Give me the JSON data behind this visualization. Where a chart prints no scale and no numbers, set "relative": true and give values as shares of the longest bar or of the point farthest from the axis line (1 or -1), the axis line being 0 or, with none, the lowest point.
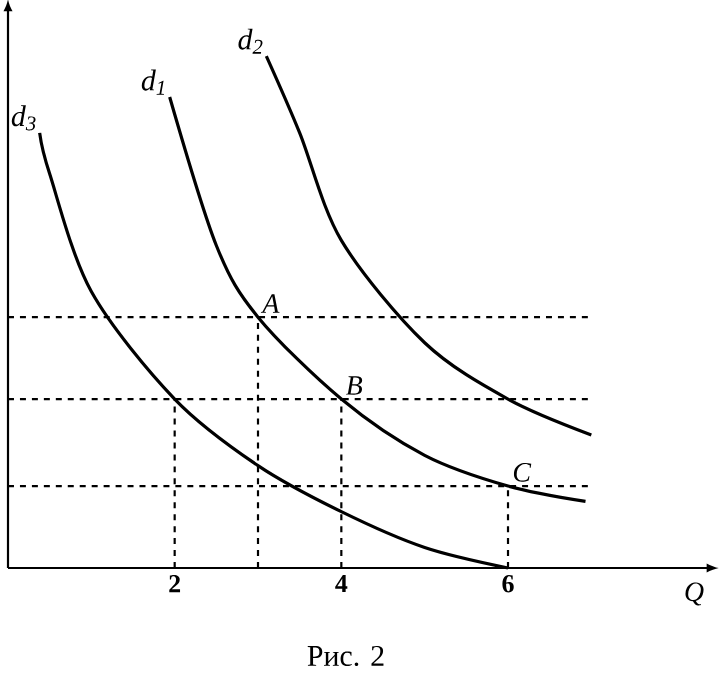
{
  "chart_data": {
    "type": "line",
    "title": "Рис. 2",
    "xlabel": "Q",
    "relative": true,
    "xlim": [
      0,
      8.4
    ],
    "xticks": [
      2,
      4,
      6
    ],
    "tick_labels": "x",
    "grid": false,
    "legend": false,
    "marker": "none",
    "line_style": "solid",
    "series": [
      {
        "name": "d$_{1}$",
        "color": "#000000",
        "x": [
          1.94,
          2.5,
          3,
          4,
          5,
          6,
          6.93
        ],
        "values": [
          0.92,
          0.63,
          0.49,
          0.33,
          0.22,
          0.16,
          0.13
        ]
      },
      {
        "name": "d$_{2}$",
        "color": "#000000",
        "x": [
          3.1,
          3.5,
          4,
          5,
          6,
          7
        ],
        "values": [
          1.0,
          0.85,
          0.64,
          0.44,
          0.33,
          0.26
        ]
      },
      {
        "name": "d$_{3}$",
        "color": "#000000",
        "x": [
          0.38,
          0.5,
          1,
          2,
          3,
          4,
          5,
          6
        ],
        "values": [
          0.85,
          0.77,
          0.54,
          0.33,
          0.2,
          0.11,
          0.04,
          0
        ]
      }
    ],
    "ref_lines": [
      {
        "axis": "y",
        "value": 0.49,
        "line_style": "dashed"
      },
      {
        "axis": "y",
        "value": 0.33,
        "line_style": "dashed"
      },
      {
        "axis": "y",
        "value": 0.16,
        "line_style": "dashed"
      },
      {
        "axis": "x",
        "value": 2,
        "line_style": "dashed"
      },
      {
        "axis": "x",
        "value": 3,
        "line_style": "dashed"
      },
      {
        "axis": "x",
        "value": 4,
        "line_style": "dashed"
      },
      {
        "axis": "x",
        "value": 6,
        "line_style": "dashed"
      }
    ],
    "annotations": [
      {
        "text": "A",
        "x": 3,
        "y": 0.49
      },
      {
        "text": "B",
        "x": 4,
        "y": 0.33
      },
      {
        "text": "C",
        "x": 6,
        "y": 0.16
      }
    ]
  }
}
